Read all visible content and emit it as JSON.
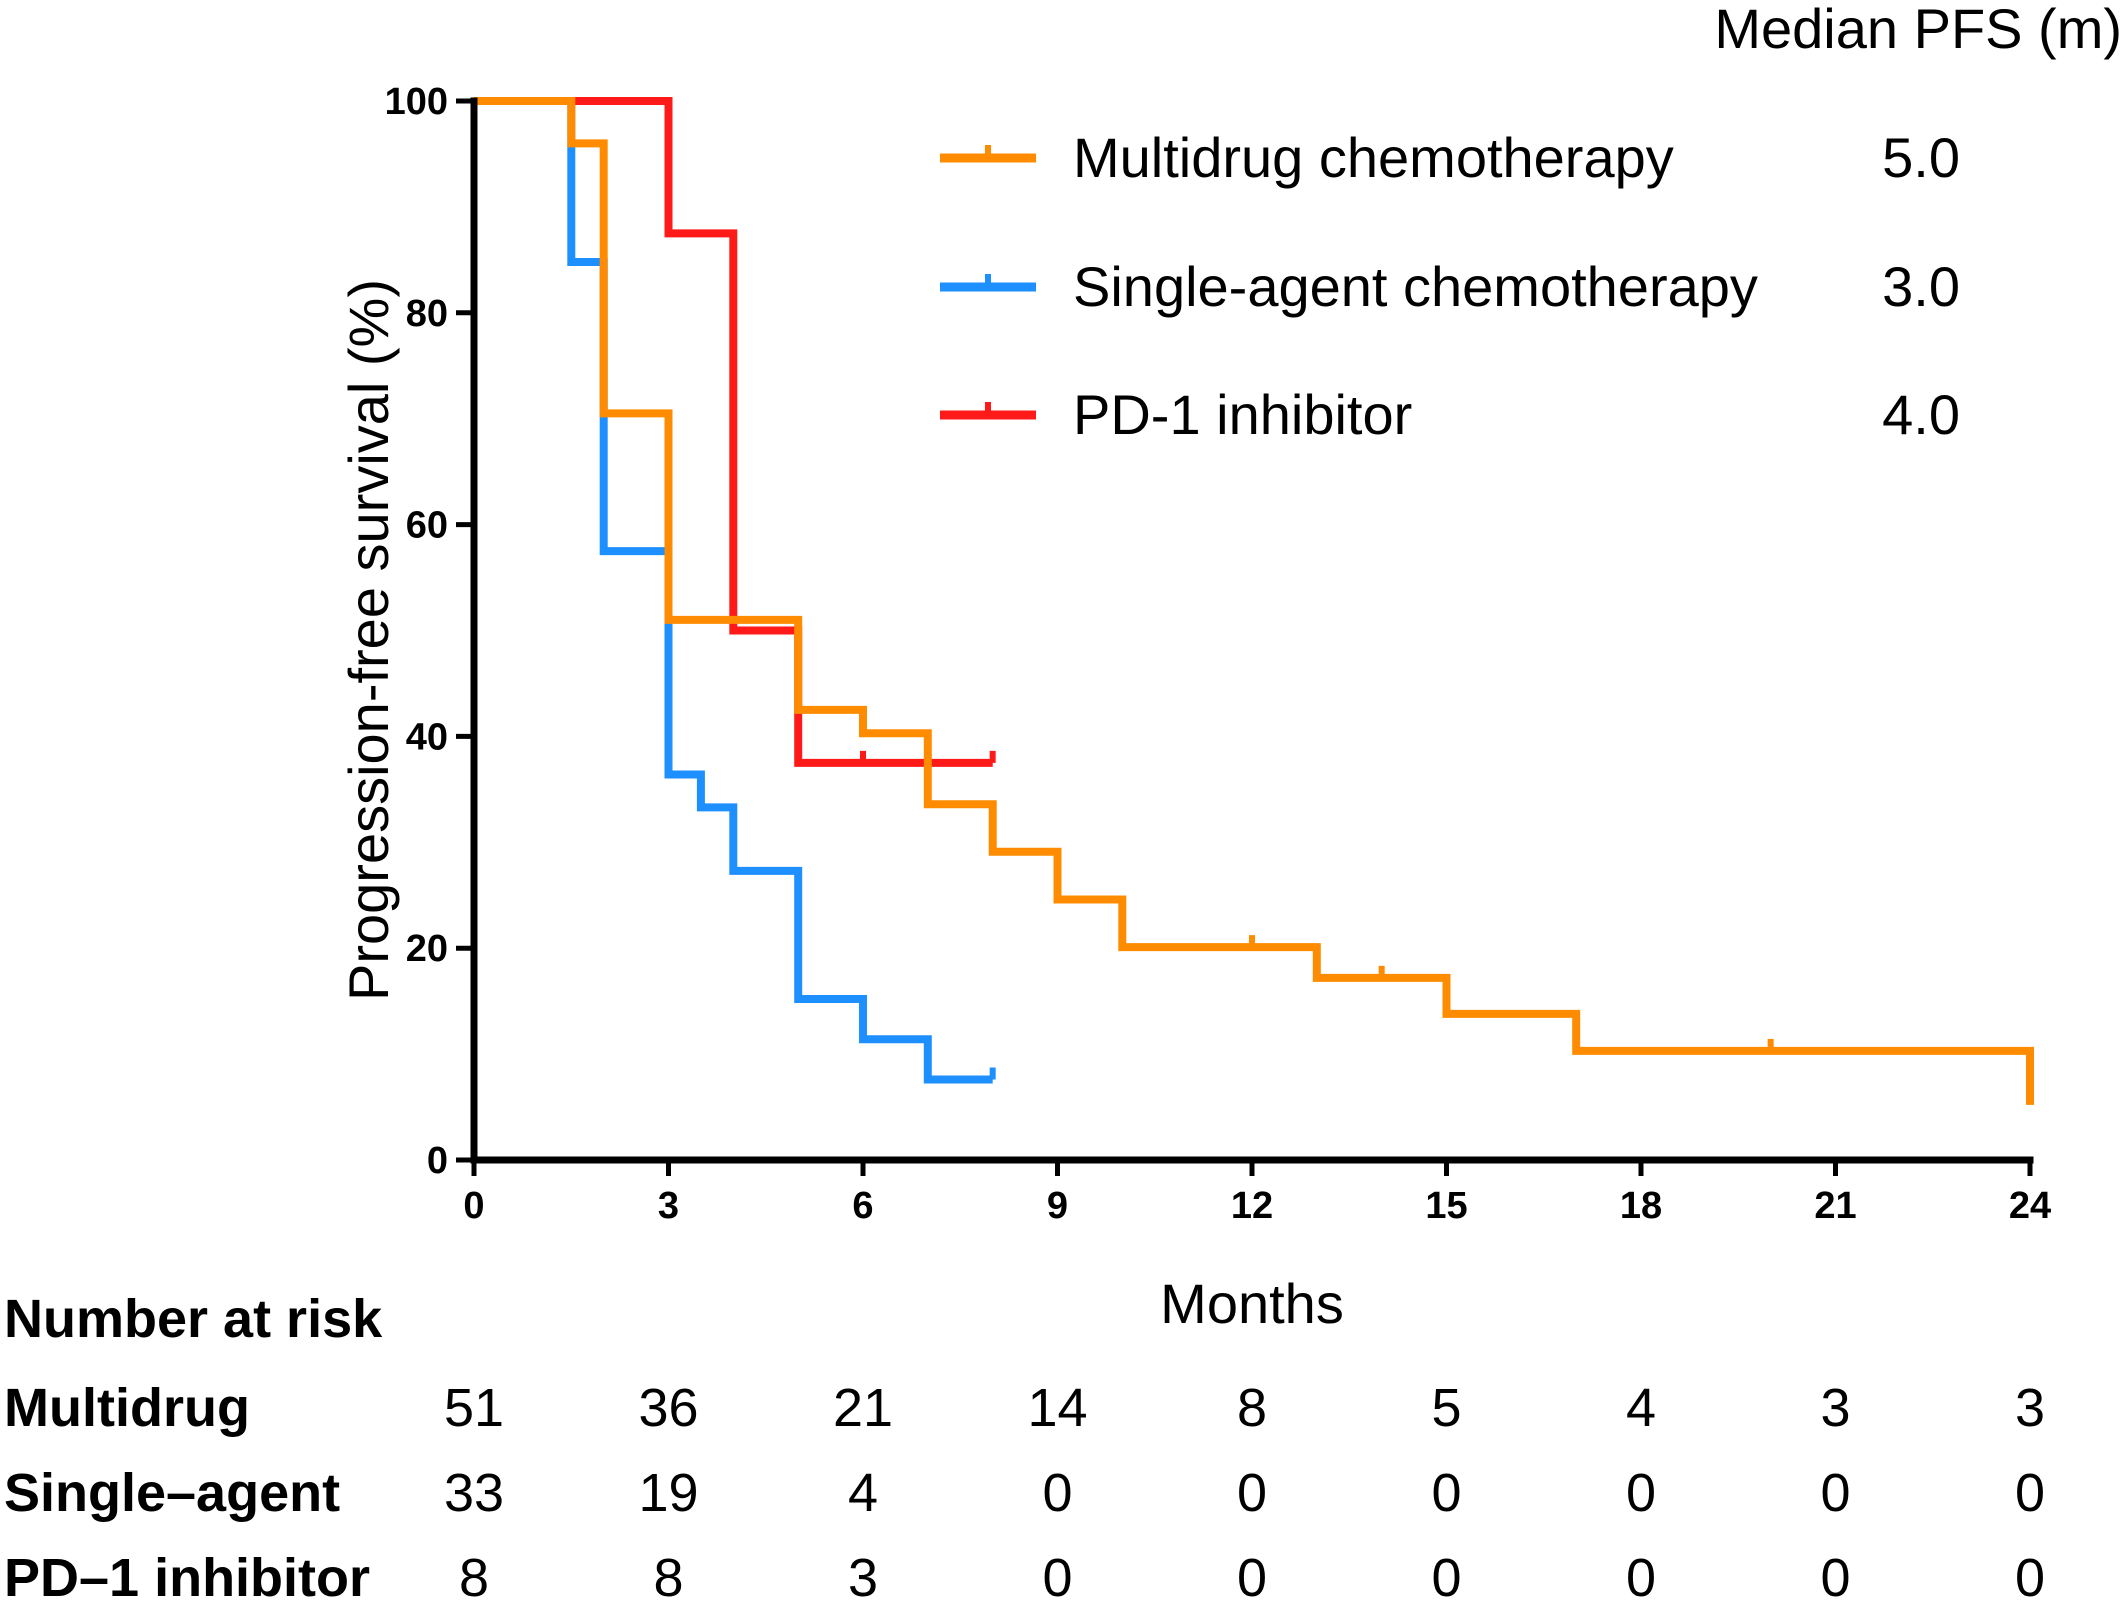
{
  "chart_data": {
    "type": "line",
    "step": true,
    "xlabel": "Months",
    "ylabel": "Progression-free survival (%)",
    "xlim": [
      0,
      24
    ],
    "ylim": [
      0,
      100
    ],
    "x_ticks": [
      "0",
      "3",
      "6",
      "9",
      "12",
      "15",
      "18",
      "21",
      "24"
    ],
    "y_ticks": [
      "0",
      "20",
      "40",
      "60",
      "80",
      "100"
    ],
    "grid": false,
    "legend": {
      "placement": "top-right",
      "header": "Median PFS (m)"
    },
    "series": [
      {
        "name": "Multidrug chemotherapy",
        "median": "5.0",
        "color": "#ff8c00",
        "points": [
          [
            0,
            100
          ],
          [
            1.5,
            100
          ],
          [
            1.5,
            96
          ],
          [
            2,
            96
          ],
          [
            2,
            70.5
          ],
          [
            3,
            70.5
          ],
          [
            3,
            51
          ],
          [
            5,
            51
          ],
          [
            5,
            42.5
          ],
          [
            6,
            42.5
          ],
          [
            6,
            40.3
          ],
          [
            7,
            40.3
          ],
          [
            7,
            33.6
          ],
          [
            8,
            33.6
          ],
          [
            8,
            29.1
          ],
          [
            9,
            29.1
          ],
          [
            9,
            24.6
          ],
          [
            10,
            24.6
          ],
          [
            10,
            20.1
          ],
          [
            13,
            20.1
          ],
          [
            13,
            17.2
          ],
          [
            15,
            17.2
          ],
          [
            15,
            13.8
          ],
          [
            17,
            13.8
          ],
          [
            17,
            10.3
          ],
          [
            24,
            10.3
          ],
          [
            24,
            5.2
          ]
        ],
        "censors": [
          [
            12,
            20.1
          ],
          [
            14,
            17.2
          ],
          [
            20,
            10.3
          ]
        ]
      },
      {
        "name": "Single-agent chemotherapy",
        "median": "3.0",
        "color": "#1e8fff",
        "points": [
          [
            0,
            100
          ],
          [
            1.5,
            100
          ],
          [
            1.5,
            84.8
          ],
          [
            2,
            84.8
          ],
          [
            2,
            57.5
          ],
          [
            3,
            57.5
          ],
          [
            3,
            36.4
          ],
          [
            3.5,
            36.4
          ],
          [
            3.5,
            33.3
          ],
          [
            4,
            33.3
          ],
          [
            4,
            27.3
          ],
          [
            5,
            27.3
          ],
          [
            5,
            15.2
          ],
          [
            6,
            15.2
          ],
          [
            6,
            11.4
          ],
          [
            7,
            11.4
          ],
          [
            7,
            7.6
          ],
          [
            8,
            7.6
          ]
        ],
        "censors": [
          [
            8,
            7.6
          ]
        ]
      },
      {
        "name": "PD-1 inhibitor",
        "median": "4.0",
        "color": "#ff1a1a",
        "points": [
          [
            0,
            100
          ],
          [
            3,
            100
          ],
          [
            3,
            87.5
          ],
          [
            4,
            87.5
          ],
          [
            4,
            50
          ],
          [
            5,
            50
          ],
          [
            5,
            37.5
          ],
          [
            8,
            37.5
          ]
        ],
        "censors": [
          [
            6,
            37.5
          ],
          [
            8,
            37.5
          ]
        ]
      }
    ],
    "risk_table": {
      "title": "Number at risk",
      "rows": [
        {
          "label": "Multidrug",
          "values": [
            "51",
            "36",
            "21",
            "14",
            "8",
            "5",
            "4",
            "3",
            "3"
          ]
        },
        {
          "label": "Single–agent",
          "values": [
            "33",
            "19",
            "4",
            "0",
            "0",
            "0",
            "0",
            "0",
            "0"
          ]
        },
        {
          "label": "PD–1 inhibitor",
          "values": [
            "8",
            "8",
            "3",
            "0",
            "0",
            "0",
            "0",
            "0",
            "0"
          ]
        }
      ]
    }
  }
}
